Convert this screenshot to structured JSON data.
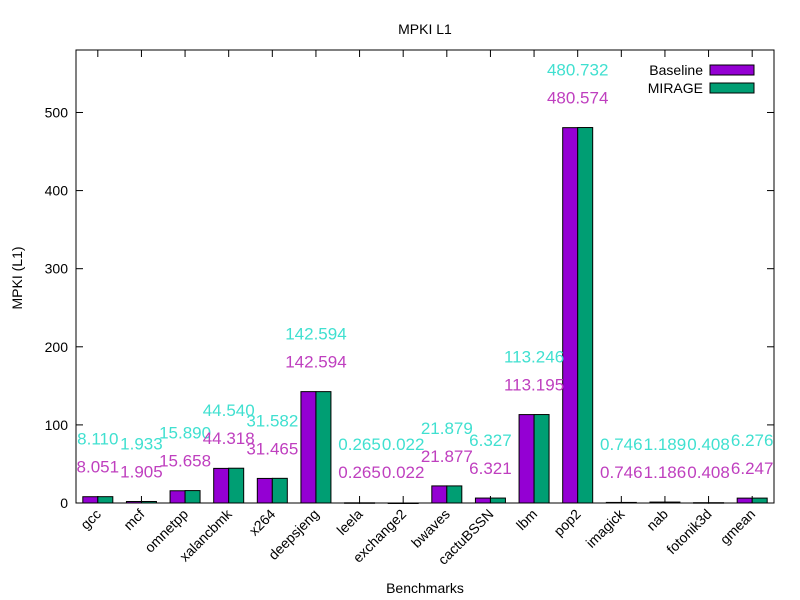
{
  "chart_data": {
    "type": "bar",
    "title": "MPKI L1",
    "xlabel": "Benchmarks",
    "ylabel": "MPKI (L1)",
    "ylim": [
      0,
      580
    ],
    "yticks": [
      0,
      100,
      200,
      300,
      400,
      500
    ],
    "grid": false,
    "legend_position": "top-right",
    "categories": [
      "gcc",
      "mcf",
      "omnetpp",
      "xalancbmk",
      "x264",
      "deepsjeng",
      "leela",
      "exchange2",
      "bwaves",
      "cactuBSSN",
      "lbm",
      "pop2",
      "imagick",
      "nab",
      "fotonik3d",
      "gmean"
    ],
    "series": [
      {
        "name": "Baseline",
        "color": "#9400d3",
        "label_color": "#bf3fbf",
        "values": [
          8.051,
          1.905,
          15.658,
          44.318,
          31.465,
          142.594,
          0.265,
          0.022,
          21.877,
          6.321,
          113.195,
          480.574,
          0.746,
          1.186,
          0.408,
          6.247
        ],
        "labels": [
          "8.051",
          "1.905",
          "15.658",
          "44.318",
          "31.465",
          "142.594",
          "0.265",
          "0.022",
          "21.877",
          "6.321",
          "113.195",
          "480.574",
          "0.746",
          "1.186",
          "0.408",
          "6.247"
        ]
      },
      {
        "name": "MIRAGE",
        "color": "#009e73",
        "label_color": "#40e0d0",
        "values": [
          8.11,
          1.933,
          15.89,
          44.54,
          31.582,
          142.594,
          0.265,
          0.022,
          21.879,
          6.327,
          113.246,
          480.732,
          0.746,
          1.189,
          0.408,
          6.276
        ],
        "labels": [
          "8.110",
          "1.933",
          "15.890",
          "44.540",
          "31.582",
          "142.594",
          "0.265",
          "0.022",
          "21.879",
          "6.327",
          "113.246",
          "480.732",
          "0.746",
          "1.189",
          "0.408",
          "6.276"
        ]
      }
    ]
  }
}
